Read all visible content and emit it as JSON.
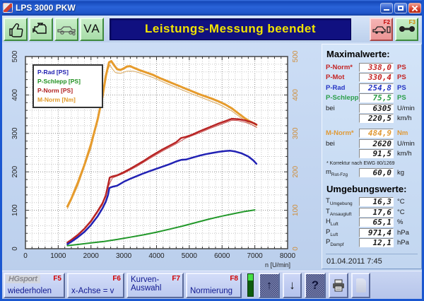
{
  "window": {
    "title": "LPS 3000 PKW"
  },
  "toolbar": {
    "status_banner": "Leistungs-Messung beendet",
    "va_label": "VA",
    "f2_key": "F2",
    "f3_key": "F3"
  },
  "maximalwerte": {
    "title": "Maximalwerte:",
    "rows": [
      {
        "label": "P-Norm*",
        "value": "338,0",
        "unit": "PS",
        "color": "#c42525"
      },
      {
        "label": "P-Mot",
        "value": "330,4",
        "unit": "PS",
        "color": "#c42525"
      },
      {
        "label": "P-Rad",
        "value": "254,8",
        "unit": "PS",
        "color": "#2535c4"
      },
      {
        "label": "P-Schlepp",
        "value": "75,5",
        "unit": "PS",
        "color": "#2b9e48"
      },
      {
        "label": "bei",
        "value": "6305",
        "unit": "U/min",
        "color": "#1a1a1a"
      },
      {
        "label": "",
        "value": "220,5",
        "unit": "km/h",
        "color": "#1a1a1a"
      },
      {
        "label": "M-Norm*",
        "value": "484,9",
        "unit": "Nm",
        "color": "#e09a36"
      },
      {
        "label": "bei",
        "value": "2620",
        "unit": "U/min",
        "color": "#1a1a1a"
      },
      {
        "label": "",
        "value": "91,5",
        "unit": "km/h",
        "color": "#1a1a1a"
      }
    ],
    "footnote": "* Korrektur nach EWG 80/1269",
    "mass": {
      "sym": "m",
      "sub": "Rot-Fzg",
      "value": "60,0",
      "unit": "kg"
    }
  },
  "umgebungswerte": {
    "title": "Umgebungswerte:",
    "rows": [
      {
        "sym": "T",
        "sub": "Umgebung",
        "value": "16,3",
        "unit": "°C"
      },
      {
        "sym": "T",
        "sub": "Ansaugluft",
        "value": "17,6",
        "unit": "°C"
      },
      {
        "sym": "H",
        "sub": "Luft",
        "value": "65,1",
        "unit": "%"
      },
      {
        "sym": "P",
        "sub": "Luft",
        "value": "971,4",
        "unit": "hPa"
      },
      {
        "sym": "P",
        "sub": "Dampf",
        "value": "12,1",
        "unit": "hPa"
      }
    ],
    "datetime": "01.04.2011  7:45"
  },
  "bottombar": {
    "buttons": [
      {
        "label": "wiederholen",
        "fkey": "F5",
        "watermark": "HGsport"
      },
      {
        "label": "x-Achse = v",
        "fkey": "F6"
      },
      {
        "label": "Kurven-\nAuswahl",
        "fkey": "F7"
      },
      {
        "label": "Normierung",
        "fkey": "F8"
      }
    ],
    "icons": {
      "up": "↑",
      "down": "↓",
      "help": "?"
    }
  },
  "chart_data": {
    "type": "line",
    "xlabel": "n [U/min]",
    "xlim": [
      0,
      8000
    ],
    "ylim_left": [
      0,
      500
    ],
    "ylim_right": [
      0,
      500
    ],
    "x_ticks": [
      0,
      1000,
      2000,
      3000,
      4000,
      5000,
      6000,
      7000,
      8000
    ],
    "y_ticks": [
      0,
      100,
      200,
      300,
      400,
      500
    ],
    "x_minor": 200,
    "x_major": 1000,
    "y_minor": 20,
    "y_major": 100,
    "grid": "dotted",
    "right_axis_color": "#cf8d38",
    "legend_position": "top-left",
    "legend": [
      {
        "label": "P-Rad [PS]",
        "color": "#2020b0"
      },
      {
        "label": "P-Schlepp [PS]",
        "color": "#209020"
      },
      {
        "label": "P-Norm [PS]",
        "color": "#b02020"
      },
      {
        "label": "M-Norm [Nm]",
        "color": "#e09a28"
      }
    ],
    "series": [
      {
        "name": "M-Mot [Nm]",
        "axis": "right",
        "color": "#d9a85e",
        "width": 1,
        "points": [
          [
            1280,
            104
          ],
          [
            1600,
            164
          ],
          [
            2000,
            262
          ],
          [
            2350,
            385
          ],
          [
            2500,
            462
          ],
          [
            2580,
            478
          ],
          [
            2650,
            468
          ],
          [
            2750,
            458
          ],
          [
            2900,
            456
          ],
          [
            3100,
            462
          ],
          [
            3300,
            462
          ],
          [
            3500,
            457
          ],
          [
            3700,
            451
          ],
          [
            3900,
            445
          ],
          [
            4300,
            430
          ],
          [
            4700,
            416
          ],
          [
            5100,
            402
          ],
          [
            5500,
            389
          ],
          [
            5900,
            376
          ],
          [
            6300,
            358
          ],
          [
            6700,
            333
          ],
          [
            7000,
            318
          ],
          [
            7060,
            315
          ]
        ]
      },
      {
        "name": "M-Norm [Nm]",
        "axis": "right",
        "color": "#e69b2c",
        "width": 3,
        "points": [
          [
            1280,
            110
          ],
          [
            1400,
            130
          ],
          [
            1600,
            172
          ],
          [
            1800,
            218
          ],
          [
            2000,
            272
          ],
          [
            2200,
            335
          ],
          [
            2350,
            395
          ],
          [
            2450,
            448
          ],
          [
            2550,
            485
          ],
          [
            2620,
            488
          ],
          [
            2700,
            478
          ],
          [
            2800,
            467
          ],
          [
            2900,
            465
          ],
          [
            3000,
            469
          ],
          [
            3100,
            474
          ],
          [
            3200,
            475
          ],
          [
            3300,
            471
          ],
          [
            3500,
            464
          ],
          [
            3700,
            458
          ],
          [
            3900,
            452
          ],
          [
            4100,
            444
          ],
          [
            4300,
            437
          ],
          [
            4500,
            430
          ],
          [
            4700,
            423
          ],
          [
            4900,
            416
          ],
          [
            5100,
            409
          ],
          [
            5300,
            402
          ],
          [
            5500,
            396
          ],
          [
            5700,
            390
          ],
          [
            5900,
            383
          ],
          [
            6100,
            375
          ],
          [
            6300,
            365
          ],
          [
            6500,
            352
          ],
          [
            6700,
            339
          ],
          [
            6850,
            331
          ],
          [
            7000,
            325
          ],
          [
            7050,
            322
          ]
        ]
      },
      {
        "name": "P-Mot [PS]",
        "axis": "left",
        "color": "#c85050",
        "width": 1,
        "points": [
          [
            1280,
            15
          ],
          [
            1600,
            34
          ],
          [
            2000,
            69
          ],
          [
            2350,
            114
          ],
          [
            2520,
            160
          ],
          [
            2650,
            184
          ],
          [
            3000,
            196
          ],
          [
            3400,
            214
          ],
          [
            3800,
            235
          ],
          [
            4200,
            255
          ],
          [
            4600,
            273
          ],
          [
            4900,
            288
          ],
          [
            5300,
            301
          ],
          [
            5700,
            315
          ],
          [
            6100,
            328
          ],
          [
            6300,
            334
          ],
          [
            6500,
            333
          ],
          [
            6700,
            329
          ],
          [
            6900,
            323
          ],
          [
            7050,
            316
          ]
        ]
      },
      {
        "name": "P-Norm [PS]",
        "axis": "left",
        "color": "#b82424",
        "width": 2.5,
        "points": [
          [
            1280,
            16
          ],
          [
            1400,
            23
          ],
          [
            1600,
            36
          ],
          [
            1800,
            52
          ],
          [
            2000,
            72
          ],
          [
            2200,
            97
          ],
          [
            2350,
            118
          ],
          [
            2450,
            138
          ],
          [
            2520,
            165
          ],
          [
            2570,
            185
          ],
          [
            2650,
            188
          ],
          [
            2800,
            191
          ],
          [
            3000,
            199
          ],
          [
            3200,
            208
          ],
          [
            3400,
            218
          ],
          [
            3600,
            228
          ],
          [
            3800,
            239
          ],
          [
            4000,
            249
          ],
          [
            4200,
            259
          ],
          [
            4400,
            268
          ],
          [
            4600,
            277
          ],
          [
            4750,
            288
          ],
          [
            4900,
            291
          ],
          [
            5100,
            297
          ],
          [
            5300,
            305
          ],
          [
            5500,
            312
          ],
          [
            5700,
            319
          ],
          [
            5900,
            326
          ],
          [
            6100,
            332
          ],
          [
            6300,
            338
          ],
          [
            6500,
            337
          ],
          [
            6700,
            334
          ],
          [
            6900,
            329
          ],
          [
            7050,
            323
          ]
        ]
      },
      {
        "name": "P-Rad [PS]",
        "axis": "left",
        "color": "#2222b4",
        "width": 2.5,
        "points": [
          [
            1280,
            12
          ],
          [
            1400,
            18
          ],
          [
            1600,
            30
          ],
          [
            1800,
            44
          ],
          [
            2000,
            62
          ],
          [
            2200,
            84
          ],
          [
            2350,
            105
          ],
          [
            2450,
            122
          ],
          [
            2520,
            140
          ],
          [
            2560,
            158
          ],
          [
            2650,
            161
          ],
          [
            2800,
            164
          ],
          [
            3000,
            174
          ],
          [
            3200,
            182
          ],
          [
            3400,
            189
          ],
          [
            3600,
            196
          ],
          [
            3800,
            202
          ],
          [
            4000,
            208
          ],
          [
            4200,
            214
          ],
          [
            4400,
            220
          ],
          [
            4600,
            227
          ],
          [
            4750,
            231
          ],
          [
            4900,
            232
          ],
          [
            5100,
            237
          ],
          [
            5300,
            242
          ],
          [
            5500,
            246
          ],
          [
            5700,
            249
          ],
          [
            5900,
            252
          ],
          [
            6100,
            254
          ],
          [
            6250,
            255
          ],
          [
            6400,
            253
          ],
          [
            6600,
            248
          ],
          [
            6800,
            240
          ],
          [
            6950,
            230
          ],
          [
            7050,
            221
          ]
        ]
      },
      {
        "name": "P-Schlepp [PS]",
        "axis": "left",
        "color": "#22982a",
        "width": 2,
        "points": [
          [
            1280,
            8
          ],
          [
            1600,
            11
          ],
          [
            2000,
            15
          ],
          [
            2400,
            19
          ],
          [
            2800,
            24
          ],
          [
            3200,
            30
          ],
          [
            3600,
            36
          ],
          [
            4000,
            43
          ],
          [
            4400,
            51
          ],
          [
            4800,
            59
          ],
          [
            5200,
            68
          ],
          [
            5600,
            77
          ],
          [
            6000,
            85
          ],
          [
            6400,
            92
          ],
          [
            6700,
            97
          ],
          [
            7000,
            101
          ]
        ]
      }
    ]
  }
}
